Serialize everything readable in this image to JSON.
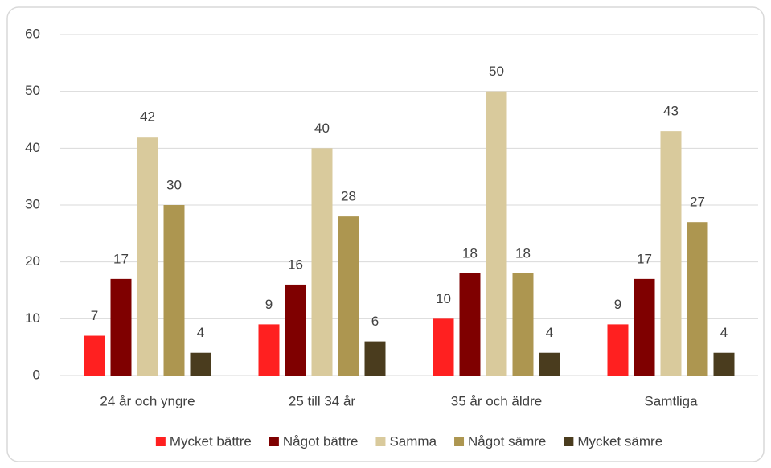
{
  "chart_data": {
    "type": "bar",
    "categories": [
      "24 år och yngre",
      "25 till 34 år",
      "35 år och äldre",
      "Samtliga"
    ],
    "series": [
      {
        "name": "Mycket bättre",
        "color": "#ff2020",
        "values": [
          7,
          9,
          10,
          9
        ]
      },
      {
        "name": "Något bättre",
        "color": "#7f0000",
        "values": [
          17,
          16,
          18,
          17
        ]
      },
      {
        "name": "Samma",
        "color": "#d9ca9c",
        "values": [
          42,
          40,
          50,
          43
        ]
      },
      {
        "name": "Något sämre",
        "color": "#ad9650",
        "values": [
          30,
          28,
          18,
          27
        ]
      },
      {
        "name": "Mycket sämre",
        "color": "#4a3c1e",
        "values": [
          4,
          6,
          4,
          4
        ]
      }
    ],
    "ylim": [
      0,
      60
    ],
    "yticks": [
      0,
      10,
      20,
      30,
      40,
      50,
      60
    ],
    "grid": true,
    "legend": "bottom"
  }
}
